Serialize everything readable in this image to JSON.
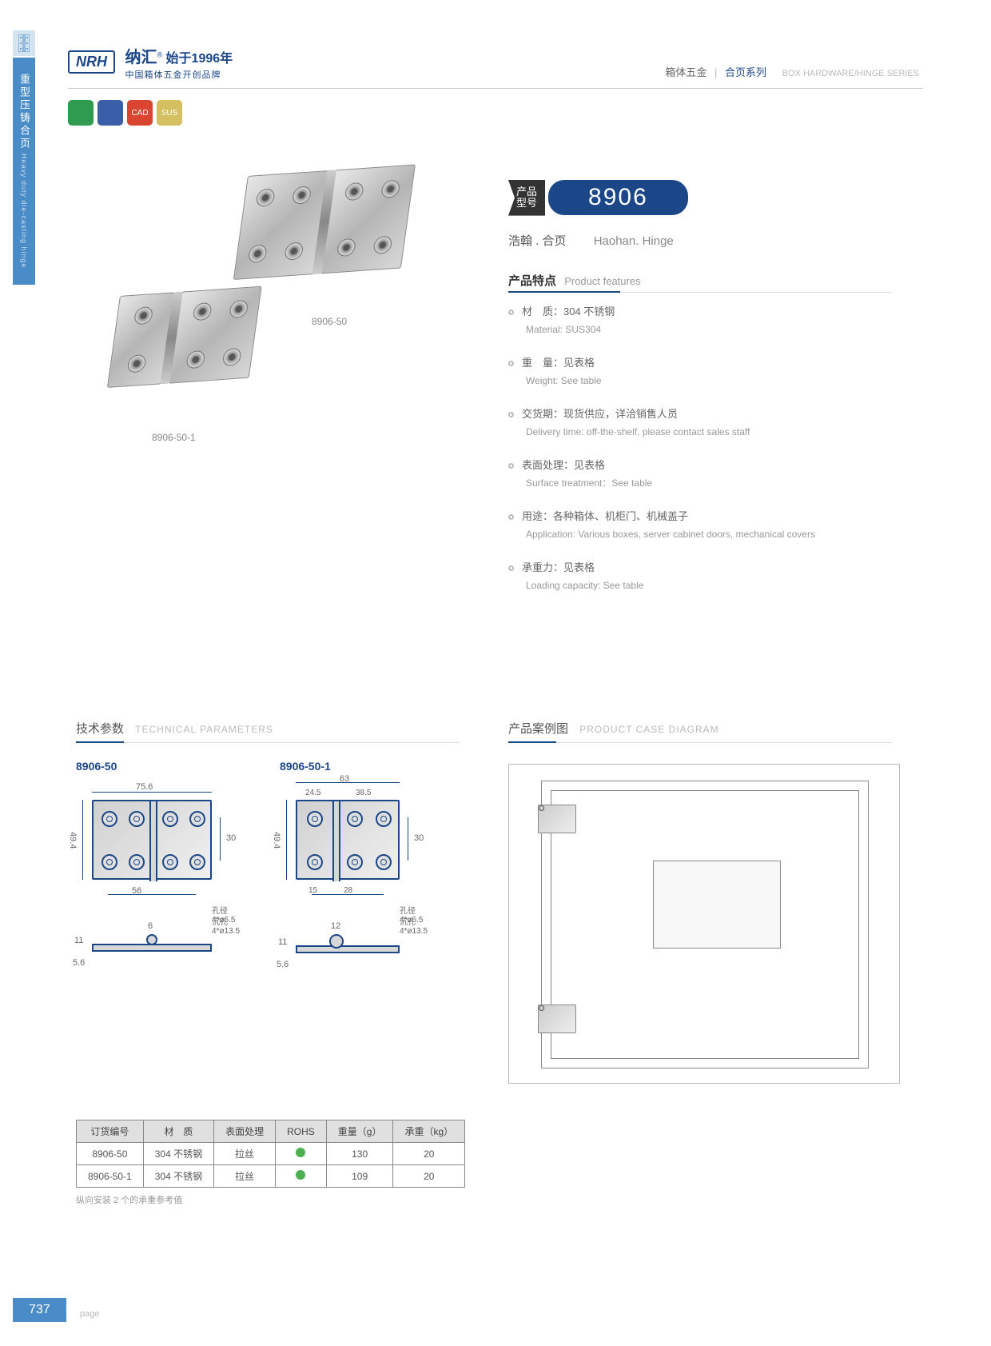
{
  "sideTab": {
    "cn": "重型压铸合页",
    "en": "Heavy duty die-casting hinge"
  },
  "logo": {
    "brand": "NRH",
    "cn": "纳汇",
    "year": "始于1996年",
    "sub": "中国箱体五金开创品牌",
    "reg": "®"
  },
  "headerRight": {
    "cn1": "箱体五金",
    "cn2": "合页系列",
    "en": "BOX HARDWARE/HINGE SERIES"
  },
  "badges": [
    {
      "label": "",
      "bg": "#2e9b4f"
    },
    {
      "label": "",
      "bg": "#3a5fa8"
    },
    {
      "label": "CAD",
      "bg": "#d94530"
    },
    {
      "label": "SUS",
      "bg": "#d4c060"
    }
  ],
  "model": {
    "label": "产品\n型号",
    "number": "8906"
  },
  "subtitle": {
    "cn": "浩翰 . 合页",
    "en": "Haohan. Hinge"
  },
  "featuresTitle": {
    "cn": "产品特点",
    "en": "Product features"
  },
  "features": [
    {
      "cn": "材　质：304 不锈钢",
      "en": "Material: SUS304"
    },
    {
      "cn": "重　量：见表格",
      "en": "Weight: See table"
    },
    {
      "cn": "交货期：现货供应，详洽销售人员",
      "en": "Delivery time: off-the-shelf, please contact sales staff"
    },
    {
      "cn": "表面处理：见表格",
      "en": "Surface treatment：See table"
    },
    {
      "cn": "用途：各种箱体、机柜门、机械盖子",
      "en": "Application: Various boxes, server cabinet doors, mechanical covers"
    },
    {
      "cn": "承重力：见表格",
      "en": "Loading capacity: See table"
    }
  ],
  "imgLabels": {
    "a": "8906-50",
    "b": "8906-50-1"
  },
  "techTitle": {
    "cn": "技术参数",
    "en": "TECHNICAL PARAMETERS"
  },
  "caseTitle": {
    "cn": "产品案例图",
    "en": "PRODUCT CASE DIAGRAM"
  },
  "drawings": {
    "a": {
      "label": "8906-50",
      "w": "75.6",
      "h": "49.4",
      "holeSpacingW": "56",
      "holeSpacingH": "30",
      "pinW": "6",
      "profH": "11",
      "profH2": "5.6",
      "holeNote1": "孔径 4*ø6.5",
      "holeNote2": "沉孔 4*ø13.5"
    },
    "b": {
      "label": "8906-50-1",
      "w": "63",
      "w1": "24.5",
      "w2": "38.5",
      "h": "49.4",
      "s1": "15",
      "s2": "28",
      "holeSpacingH": "30",
      "pinW": "12",
      "profH": "11",
      "profH2": "5.6",
      "holeNote1": "孔径 4*ø6.5",
      "holeNote2": "沉孔 4*ø13.5"
    }
  },
  "table": {
    "headers": [
      "订货编号",
      "材　质",
      "表面处理",
      "ROHS",
      "重量（g）",
      "承重（kg）"
    ],
    "rows": [
      [
        "8906-50",
        "304 不锈钢",
        "拉丝",
        "●",
        "130",
        "20"
      ],
      [
        "8906-50-1",
        "304 不锈钢",
        "拉丝",
        "●",
        "109",
        "20"
      ]
    ],
    "note": "纵向安装 2 个的承重参考值"
  },
  "pageNum": "737",
  "pageLabel": "page",
  "colors": {
    "primary": "#1b4788",
    "tab": "#4a8cc7",
    "text": "#666",
    "light": "#999"
  }
}
